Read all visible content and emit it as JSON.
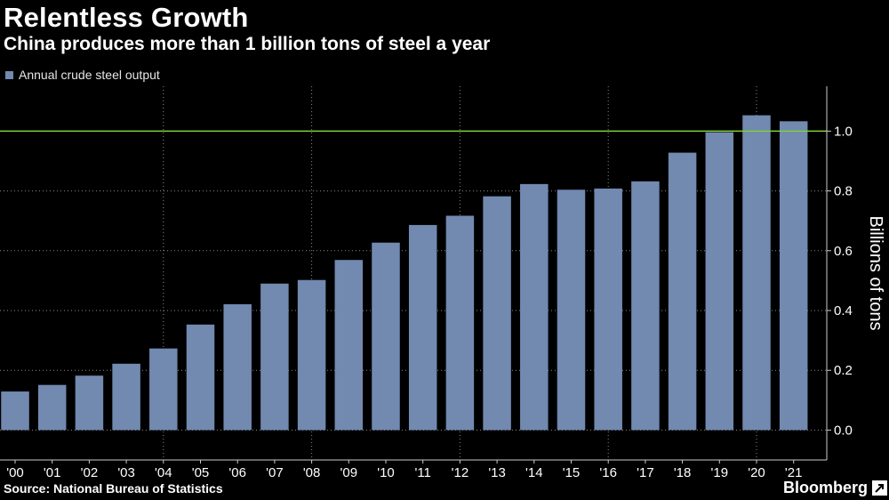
{
  "title": "Relentless Growth",
  "subtitle": "China produces more than 1 billion tons of steel a year",
  "source": "Source: National Bureau of Statistics",
  "brand": "Bloomberg",
  "colors": {
    "background": "#000000",
    "bar": "#7289b0",
    "reference_line": "#7fd13b",
    "grid": "#8a8a8a",
    "text": "#ffffff"
  },
  "chart_data": {
    "type": "bar",
    "categories": [
      "'00",
      "'01",
      "'02",
      "'03",
      "'04",
      "'05",
      "'06",
      "'07",
      "'08",
      "'09",
      "'10",
      "'11",
      "'12",
      "'13",
      "'14",
      "'15",
      "'16",
      "'17",
      "'18",
      "'19",
      "'20",
      "'21"
    ],
    "series": [
      {
        "name": "Annual crude steel output",
        "values": [
          0.129,
          0.151,
          0.182,
          0.222,
          0.273,
          0.353,
          0.421,
          0.49,
          0.502,
          0.569,
          0.627,
          0.686,
          0.717,
          0.782,
          0.823,
          0.804,
          0.808,
          0.832,
          0.928,
          0.996,
          1.053,
          1.033
        ]
      }
    ],
    "reference_line": {
      "value": 1.0
    },
    "xlabel": "",
    "ylabel": "Billions of tons",
    "ylim": [
      -0.1,
      1.15
    ],
    "yticks": [
      0.0,
      0.2,
      0.4,
      0.6,
      0.8,
      1.0
    ],
    "ytick_labels": [
      "0.0",
      "0.2",
      "0.4",
      "0.6",
      "0.8",
      "1.0"
    ],
    "y_axis_position": "right",
    "vertical_grid": "dotted",
    "legend_position": "top-left"
  }
}
